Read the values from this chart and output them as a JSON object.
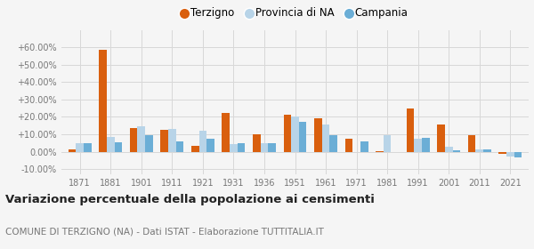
{
  "years": [
    1871,
    1881,
    1901,
    1911,
    1921,
    1931,
    1936,
    1951,
    1961,
    1971,
    1981,
    1991,
    2001,
    2011,
    2021
  ],
  "terzigno": [
    1.5,
    58.5,
    13.5,
    12.5,
    3.5,
    22.5,
    10.0,
    21.0,
    19.0,
    7.5,
    0.3,
    25.0,
    15.5,
    9.5,
    -1.5
  ],
  "provincia_na": [
    5.0,
    8.5,
    14.5,
    13.0,
    12.0,
    4.5,
    5.0,
    20.0,
    15.5,
    0.0,
    9.5,
    7.5,
    3.0,
    1.5,
    -3.0
  ],
  "campania": [
    5.0,
    5.5,
    9.5,
    6.0,
    7.5,
    5.0,
    5.0,
    17.0,
    9.5,
    6.0,
    0.0,
    8.0,
    1.0,
    1.5,
    -3.5
  ],
  "color_terzigno": "#d95f0e",
  "color_provincia": "#b8d4e8",
  "color_campania": "#6baed6",
  "title": "Variazione percentuale della popolazione ai censimenti",
  "subtitle": "COMUNE DI TERZIGNO (NA) - Dati ISTAT - Elaborazione TUTTITALIA.IT",
  "ylim": [
    -13,
    70
  ],
  "yticks": [
    -10,
    0,
    10,
    20,
    30,
    40,
    50,
    60
  ],
  "bg_color": "#f5f5f5",
  "grid_color": "#d8d8d8"
}
